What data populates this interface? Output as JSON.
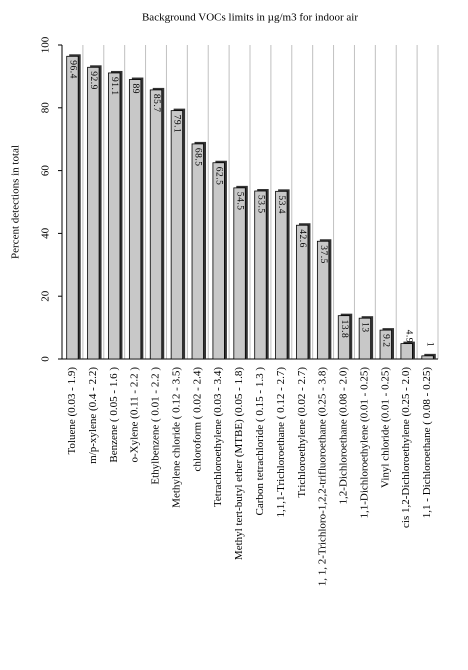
{
  "chart_data": {
    "type": "bar",
    "title": "Background VOCs limits in µg/m3 for indoor air",
    "y_label": "Percent detections in total",
    "categories": [
      "Toluene (0.03 - 1.9)",
      "m/p-xylene (0.4 - 2.2)",
      "Benzene ( 0.05 - 1.6 )",
      "o-Xylene (0.11 - 2.2 )",
      "Ethylbenzene ( 0.01 - 2.2 )",
      "Methylene chloride ( 0.12 - 3.5)",
      "chloroform ( 0.02 - 2.4)",
      "Tetrachloroethylene (0.03 - 3.4)",
      "Methyl tert-butyl ether (MTBE) (0.05 - 1.8)",
      "Carbon tetrachloride ( 0.15 - 1.3 )",
      "1,1,1-Trichloroethane ( 0.12 - 2.7)",
      "Trichloroethylene (0.02 - 2.7)",
      "1, 1, 2-Trichloro-1,2,2-trifluoroethane (0.25 - 3.8)",
      "1,2-Dichloroethane (0.08 - 2.0)",
      "1,1-Dichloroethylene (0.01 - 0.25)",
      "Vinyl chloride (0.01 - 0.25)",
      "cis 1,2-Dichloroethylene (0.25 - 2.0)",
      "1,1 - Dichloroethane ( 0.08 - 0.25)"
    ],
    "values": [
      96.4,
      92.9,
      91.1,
      89,
      85.7,
      79.1,
      68.5,
      62.5,
      54.5,
      53.5,
      53.4,
      42.6,
      37.5,
      13.8,
      13,
      9.2,
      4.9,
      1
    ],
    "color": "#c8c8c8",
    "ylim": [
      0,
      100
    ],
    "yticks": [
      0,
      20,
      40,
      60,
      80,
      100
    ],
    "grid": true
  }
}
